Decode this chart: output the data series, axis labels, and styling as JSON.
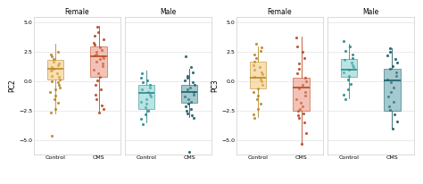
{
  "panels": [
    {
      "title": "Female",
      "ylabel": "PC2",
      "groups": [
        "Control",
        "CMS"
      ],
      "colors_fill": [
        "#F2C572",
        "#E8907A"
      ],
      "colors_edge": [
        "#B8862A",
        "#B84820"
      ],
      "boxes": [
        {
          "q1": 0.2,
          "median": 1.1,
          "q3": 1.8,
          "whislo": -2.7,
          "whishi": 3.2
        },
        {
          "q1": 0.4,
          "median": 2.1,
          "q3": 3.0,
          "whislo": -2.5,
          "whishi": 4.7
        }
      ],
      "points": [
        [
          -4.6,
          -2.6,
          -2.3,
          -1.8,
          -1.5,
          -1.2,
          -0.9,
          -0.7,
          -0.5,
          -0.3,
          -0.1,
          0.0,
          0.2,
          0.4,
          0.5,
          0.7,
          0.9,
          1.0,
          1.1,
          1.2,
          1.4,
          1.5,
          1.7,
          1.9,
          2.1,
          2.3,
          2.5
        ],
        [
          -2.6,
          -2.3,
          -2.0,
          -1.5,
          -1.1,
          -0.7,
          -0.3,
          0.1,
          0.4,
          0.7,
          1.0,
          1.3,
          1.5,
          1.7,
          1.9,
          2.0,
          2.1,
          2.2,
          2.3,
          2.5,
          2.7,
          2.9,
          3.1,
          3.3,
          3.6,
          3.9,
          4.2,
          4.6
        ]
      ]
    },
    {
      "title": "Male",
      "ylabel": "",
      "groups": [
        "Control",
        "CMS"
      ],
      "colors_fill": [
        "#7ECECE",
        "#5A9EA8"
      ],
      "colors_edge": [
        "#2A8888",
        "#1A5E68"
      ],
      "boxes": [
        {
          "q1": -2.3,
          "median": -1.0,
          "q3": -0.3,
          "whislo": -3.5,
          "whishi": 0.9
        },
        {
          "q1": -1.8,
          "median": -0.9,
          "q3": -0.3,
          "whislo": -3.0,
          "whishi": 1.1
        }
      ],
      "points": [
        [
          -3.6,
          -3.2,
          -2.8,
          -2.5,
          -2.2,
          -1.9,
          -1.7,
          -1.5,
          -1.3,
          -1.1,
          -0.9,
          -0.7,
          -0.5,
          -0.3,
          -0.1,
          0.1,
          0.3,
          0.7
        ],
        [
          -6.0,
          -3.1,
          -2.9,
          -2.7,
          -2.5,
          -2.3,
          -2.1,
          -1.9,
          -1.7,
          -1.5,
          -1.3,
          -1.1,
          -0.9,
          -0.7,
          -0.5,
          -0.3,
          -0.1,
          0.1,
          0.3,
          0.5,
          0.8,
          1.2,
          2.1
        ]
      ]
    }
  ],
  "panels2": [
    {
      "title": "Female",
      "ylabel": "PC3",
      "groups": [
        "Control",
        "CMS"
      ],
      "colors_fill": [
        "#F2C572",
        "#E8907A"
      ],
      "colors_edge": [
        "#B8862A",
        "#B84820"
      ],
      "boxes": [
        {
          "q1": -0.6,
          "median": 0.3,
          "q3": 1.7,
          "whislo": -3.0,
          "whishi": 3.0
        },
        {
          "q1": -2.5,
          "median": -0.5,
          "q3": 0.3,
          "whislo": -5.4,
          "whishi": 3.8
        }
      ],
      "points": [
        [
          -3.1,
          -2.8,
          -2.3,
          -1.9,
          -1.5,
          -1.2,
          -0.9,
          -0.6,
          -0.3,
          0.0,
          0.2,
          0.4,
          0.6,
          0.8,
          1.0,
          1.2,
          1.4,
          1.7,
          2.0,
          2.3,
          2.6,
          2.9,
          3.2
        ],
        [
          -5.3,
          -4.4,
          -3.5,
          -3.1,
          -2.9,
          -2.7,
          -2.5,
          -2.3,
          -2.1,
          -1.8,
          -1.5,
          -1.2,
          -0.9,
          -0.6,
          -0.3,
          0.0,
          0.3,
          0.7,
          1.1,
          1.5,
          2.0,
          2.5,
          3.0,
          3.7
        ]
      ]
    },
    {
      "title": "Male",
      "ylabel": "",
      "groups": [
        "Control",
        "CMS"
      ],
      "colors_fill": [
        "#7ECECE",
        "#5A9EA8"
      ],
      "colors_edge": [
        "#2A8888",
        "#1A5E68"
      ],
      "boxes": [
        {
          "q1": 0.4,
          "median": 1.0,
          "q3": 1.9,
          "whislo": -1.4,
          "whishi": 3.2
        },
        {
          "q1": -2.5,
          "median": 0.1,
          "q3": 1.1,
          "whislo": -3.9,
          "whishi": 2.8
        }
      ],
      "points": [
        [
          -1.5,
          -1.1,
          -0.7,
          -0.2,
          0.2,
          0.5,
          0.8,
          1.0,
          1.2,
          1.4,
          1.6,
          1.8,
          2.0,
          2.3,
          2.6,
          3.0,
          3.4
        ],
        [
          -4.0,
          -3.4,
          -2.8,
          -2.4,
          -2.1,
          -1.7,
          -1.3,
          -0.9,
          -0.5,
          -0.1,
          0.2,
          0.5,
          0.8,
          1.1,
          1.3,
          1.6,
          1.9,
          2.2,
          2.5,
          2.8
        ]
      ]
    }
  ],
  "ylim": [
    -6.2,
    5.5
  ],
  "yticks": [
    -5.0,
    -2.5,
    0.0,
    2.5,
    5.0
  ],
  "bg_color": "#FFFFFF",
  "panel_bg": "#FFFFFF",
  "grid_color": "#E8E8E8"
}
